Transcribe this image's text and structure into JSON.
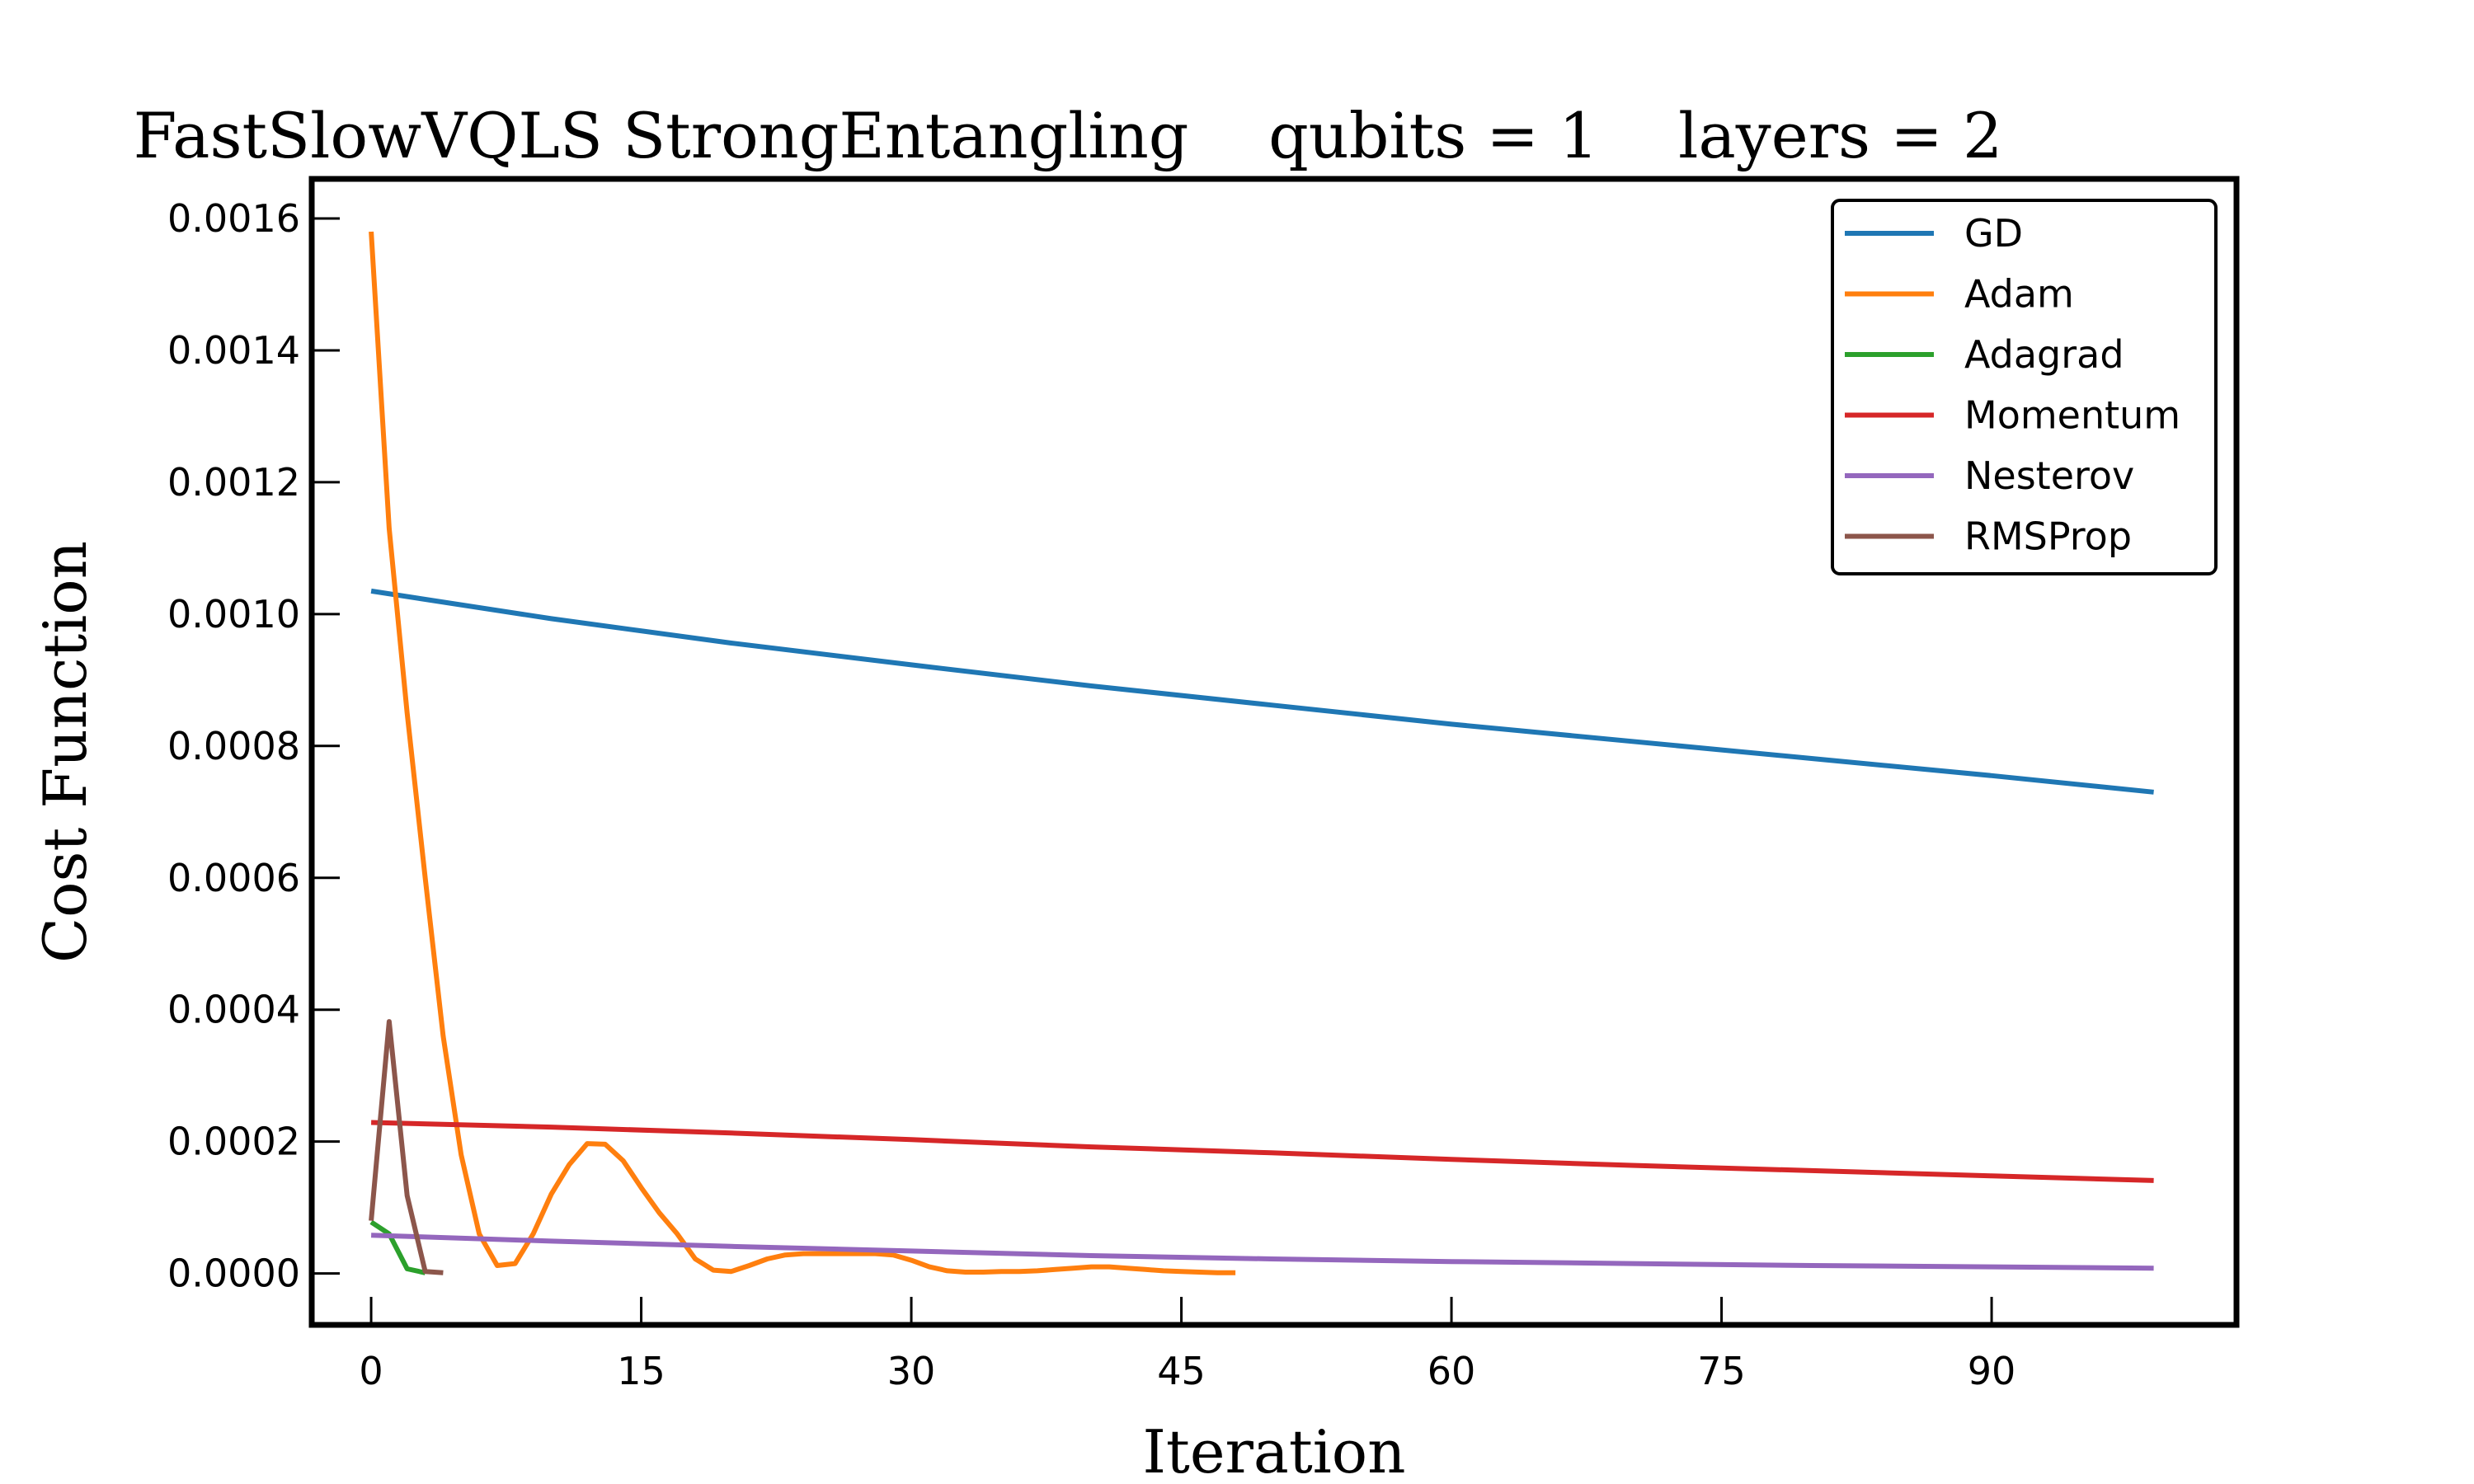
{
  "chart_data": {
    "type": "line",
    "title": "FastSlowVQLS StrongEntangling    qubits = 1    layers = 2",
    "xlabel": "Iteration",
    "ylabel": "Cost Function",
    "xlim": [
      -3.3,
      103.6
    ],
    "ylim": [
      -7.8e-05,
      0.00166
    ],
    "xticks": [
      0,
      15,
      30,
      45,
      60,
      75,
      90
    ],
    "yticks": [
      0.0,
      0.0002,
      0.0004,
      0.0006,
      0.0008,
      0.001,
      0.0012,
      0.0014,
      0.0016
    ],
    "ytick_labels": [
      "0.0000",
      "0.0002",
      "0.0004",
      "0.0006",
      "0.0008",
      "0.0010",
      "0.0012",
      "0.0014",
      "0.0016"
    ],
    "xtick_labels": [
      "0",
      "15",
      "30",
      "45",
      "60",
      "75",
      "90"
    ],
    "grid": false,
    "legend_position": "top-right",
    "series": [
      {
        "name": "GD",
        "color": "#1f77b4",
        "x": [
          0,
          10,
          20,
          30,
          40,
          50,
          60,
          70,
          80,
          90,
          99
        ],
        "y": [
          0.001035,
          0.000993,
          0.000956,
          0.000923,
          0.000891,
          0.000862,
          0.000833,
          0.000807,
          0.000781,
          0.000755,
          0.00073
        ]
      },
      {
        "name": "Adam",
        "color": "#ff7f0e",
        "x": [
          0,
          1,
          2,
          3,
          4,
          5,
          6,
          7,
          8,
          9,
          10,
          11,
          12,
          13,
          14,
          15,
          16,
          17,
          18,
          19,
          20,
          21,
          22,
          23,
          24,
          25,
          26,
          27,
          28,
          29,
          30,
          31,
          32,
          33,
          34,
          35,
          36,
          37,
          38,
          39,
          40,
          41,
          42,
          43,
          44,
          45,
          46,
          47,
          48
        ],
        "y": [
          0.00158,
          0.00113,
          0.00085,
          0.0006,
          0.00036,
          0.00018,
          6e-05,
          1.2e-05,
          1.5e-05,
          6e-05,
          0.00012,
          0.000165,
          0.000197,
          0.000196,
          0.000171,
          0.00013,
          9.2e-05,
          6e-05,
          2.2e-05,
          5e-06,
          3e-06,
          1.2e-05,
          2.2e-05,
          2.8e-05,
          3e-05,
          3e-05,
          3e-05,
          3e-05,
          3e-05,
          2.8e-05,
          2e-05,
          1e-05,
          4e-06,
          2e-06,
          2e-06,
          3e-06,
          3e-06,
          4e-06,
          6e-06,
          8e-06,
          1e-05,
          1e-05,
          8e-06,
          6e-06,
          4e-06,
          3e-06,
          2e-06,
          1e-06,
          1e-06
        ]
      },
      {
        "name": "Adagrad",
        "color": "#2ca02c",
        "x": [
          0,
          1,
          2,
          3
        ],
        "y": [
          7.8e-05,
          6e-05,
          7e-06,
          1e-06
        ]
      },
      {
        "name": "Momentum",
        "color": "#d62728",
        "x": [
          0,
          10,
          20,
          30,
          40,
          50,
          60,
          70,
          80,
          90,
          99
        ],
        "y": [
          0.000229,
          0.000222,
          0.000213,
          0.000203,
          0.000192,
          0.000183,
          0.000173,
          0.000164,
          0.000156,
          0.000148,
          0.000141
        ]
      },
      {
        "name": "Nesterov",
        "color": "#9467bd",
        "x": [
          0,
          10,
          20,
          30,
          40,
          50,
          60,
          70,
          80,
          90,
          99
        ],
        "y": [
          5.8e-05,
          4.9e-05,
          4.1e-05,
          3.4e-05,
          2.7e-05,
          2.2e-05,
          1.8e-05,
          1.5e-05,
          1.2e-05,
          1e-05,
          8e-06
        ]
      },
      {
        "name": "RMSProp",
        "color": "#8c564b",
        "x": [
          0,
          1,
          2,
          3,
          4
        ],
        "y": [
          8e-05,
          0.000382,
          0.000118,
          3e-06,
          1e-06
        ]
      }
    ]
  }
}
